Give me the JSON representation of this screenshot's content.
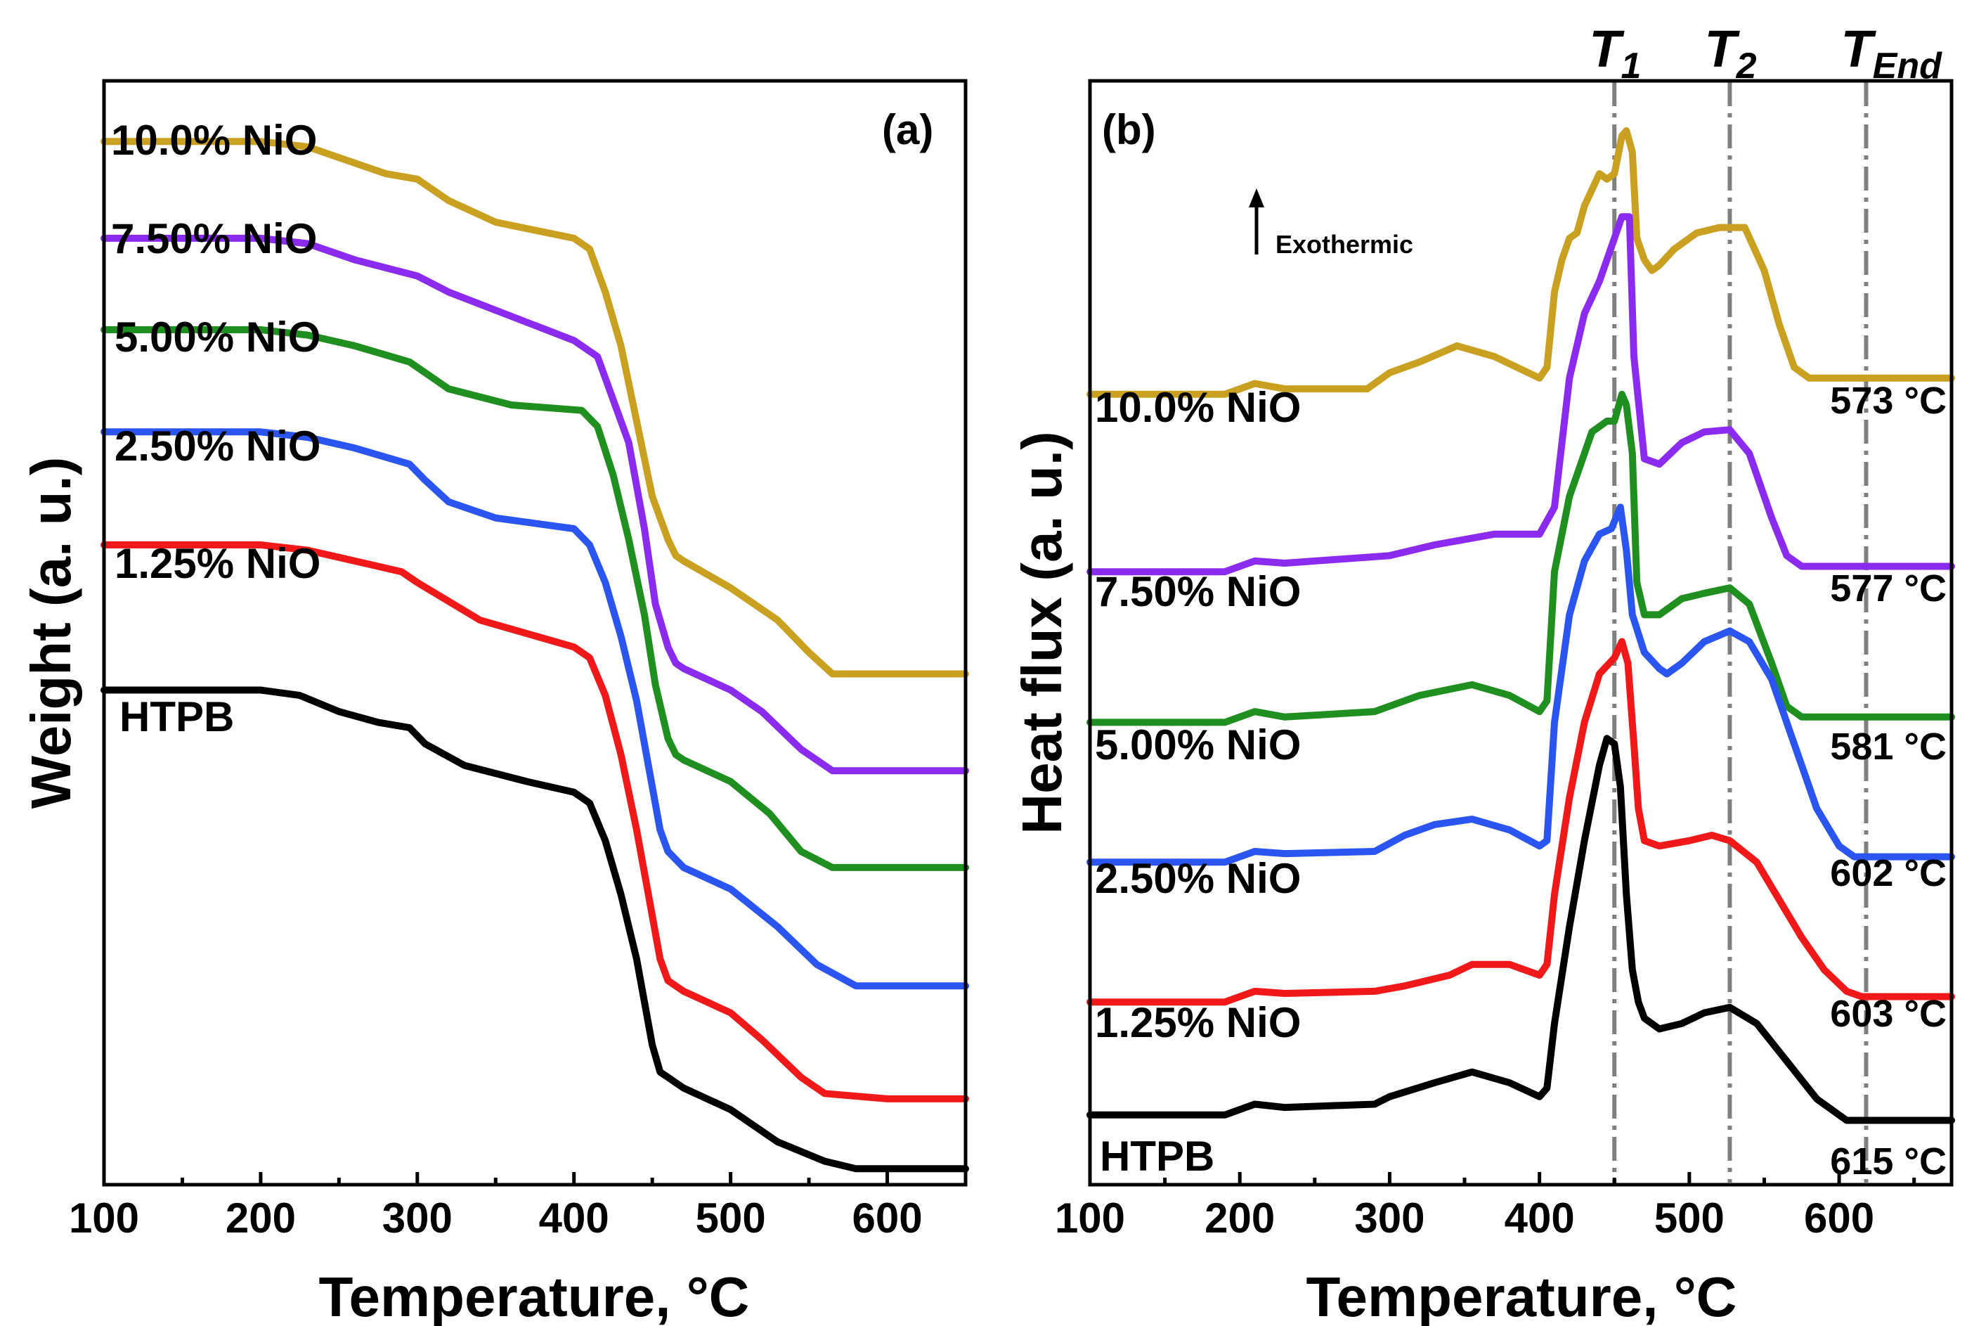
{
  "chart_data": [
    {
      "type": "line",
      "panel": "(a)",
      "xlabel": "Temperature,",
      "xlabel_unit": "°C",
      "ylabel": "Weight (a. u.)",
      "xlim": [
        100,
        650
      ],
      "ylim": [
        0,
        10
      ],
      "xticks": [
        100,
        200,
        300,
        400,
        500,
        600
      ],
      "series": [
        {
          "name": "10.0% NiO",
          "color": "#C9A020",
          "x": [
            100,
            200,
            230,
            250,
            280,
            300,
            320,
            350,
            400,
            410,
            420,
            430,
            440,
            450,
            460,
            465,
            470,
            500,
            530,
            550,
            565,
            600,
            650
          ],
          "y": [
            9.6,
            9.6,
            9.55,
            9.45,
            9.3,
            9.25,
            9.05,
            8.85,
            8.7,
            8.6,
            8.2,
            7.7,
            7.0,
            6.3,
            5.9,
            5.75,
            5.7,
            5.45,
            5.15,
            4.85,
            4.65,
            4.65,
            4.65
          ]
        },
        {
          "name": "7.50% NiO",
          "color": "#8B2BF0",
          "x": [
            100,
            200,
            230,
            260,
            300,
            320,
            400,
            415,
            425,
            435,
            445,
            452,
            460,
            465,
            470,
            500,
            520,
            545,
            565,
            600,
            650
          ],
          "y": [
            8.7,
            8.7,
            8.65,
            8.5,
            8.35,
            8.2,
            7.75,
            7.6,
            7.2,
            6.8,
            6.0,
            5.3,
            4.9,
            4.75,
            4.7,
            4.5,
            4.3,
            3.95,
            3.75,
            3.75,
            3.75
          ]
        },
        {
          "name": "5.00% NiO",
          "color": "#1F8F1F",
          "x": [
            100,
            200,
            230,
            260,
            295,
            320,
            360,
            405,
            415,
            425,
            435,
            445,
            452,
            460,
            465,
            470,
            500,
            525,
            545,
            565,
            600,
            650
          ],
          "y": [
            7.85,
            7.85,
            7.8,
            7.7,
            7.55,
            7.3,
            7.15,
            7.1,
            6.95,
            6.5,
            5.9,
            5.2,
            4.55,
            4.05,
            3.9,
            3.85,
            3.65,
            3.35,
            3.0,
            2.85,
            2.85,
            2.85
          ]
        },
        {
          "name": "2.50% NiO",
          "color": "#2A55F0",
          "x": [
            100,
            200,
            230,
            260,
            295,
            305,
            320,
            350,
            400,
            410,
            420,
            430,
            440,
            450,
            455,
            460,
            470,
            500,
            530,
            555,
            580,
            600,
            650
          ],
          "y": [
            6.9,
            6.9,
            6.85,
            6.75,
            6.6,
            6.45,
            6.25,
            6.1,
            6.0,
            5.85,
            5.5,
            5.0,
            4.4,
            3.6,
            3.2,
            3.0,
            2.85,
            2.65,
            2.3,
            1.95,
            1.75,
            1.75,
            1.75
          ]
        },
        {
          "name": "1.25% NiO",
          "color": "#F01818",
          "x": [
            100,
            200,
            230,
            260,
            290,
            300,
            340,
            400,
            410,
            420,
            430,
            440,
            450,
            455,
            460,
            465,
            470,
            500,
            520,
            545,
            560,
            600,
            650
          ],
          "y": [
            5.85,
            5.85,
            5.8,
            5.7,
            5.6,
            5.5,
            5.15,
            4.9,
            4.8,
            4.45,
            3.9,
            3.2,
            2.4,
            2.0,
            1.8,
            1.75,
            1.7,
            1.5,
            1.25,
            0.9,
            0.75,
            0.7,
            0.7
          ]
        },
        {
          "name": "HTPB",
          "color": "#000000",
          "x": [
            100,
            200,
            225,
            250,
            275,
            295,
            305,
            330,
            370,
            400,
            410,
            420,
            430,
            440,
            450,
            455,
            460,
            465,
            470,
            500,
            530,
            560,
            580,
            600,
            650
          ],
          "y": [
            4.5,
            4.5,
            4.45,
            4.3,
            4.2,
            4.15,
            4.0,
            3.8,
            3.65,
            3.55,
            3.45,
            3.1,
            2.6,
            2.0,
            1.2,
            0.95,
            0.9,
            0.85,
            0.8,
            0.6,
            0.3,
            0.12,
            0.05,
            0.05,
            0.05
          ]
        }
      ]
    },
    {
      "type": "line",
      "panel": "(b)",
      "xlabel": "Temperature,",
      "xlabel_unit": "°C",
      "ylabel": "Heat flux (a. u.)",
      "xlim": [
        100,
        675
      ],
      "ylim": [
        0,
        10
      ],
      "xticks": [
        100,
        200,
        300,
        400,
        500,
        600
      ],
      "annotation": "Exothermic",
      "vlines": [
        {
          "x": 450,
          "label": "T",
          "sub": "1"
        },
        {
          "x": 527,
          "label": "T",
          "sub": "2"
        },
        {
          "x": 618,
          "label": "T",
          "sub": "End"
        }
      ],
      "series": [
        {
          "name": "10.0% NiO",
          "color": "#C9A020",
          "end_temp": "573 °C",
          "x": [
            100,
            190,
            210,
            230,
            285,
            300,
            320,
            345,
            370,
            400,
            405,
            410,
            415,
            420,
            425,
            430,
            440,
            445,
            450,
            455,
            458,
            462,
            465,
            470,
            475,
            480,
            490,
            505,
            520,
            537,
            550,
            560,
            570,
            580,
            600,
            675
          ],
          "y": [
            7.25,
            7.25,
            7.35,
            7.3,
            7.3,
            7.45,
            7.55,
            7.7,
            7.6,
            7.4,
            7.5,
            8.2,
            8.5,
            8.7,
            8.75,
            9.0,
            9.3,
            9.25,
            9.3,
            9.65,
            9.7,
            9.5,
            8.7,
            8.5,
            8.4,
            8.45,
            8.6,
            8.75,
            8.8,
            8.8,
            8.4,
            7.9,
            7.5,
            7.4,
            7.4,
            7.4
          ]
        },
        {
          "name": "7.50% NiO",
          "color": "#8B2BF0",
          "end_temp": "577 °C",
          "x": [
            100,
            190,
            210,
            230,
            300,
            330,
            370,
            400,
            410,
            420,
            430,
            440,
            450,
            455,
            460,
            463,
            470,
            480,
            495,
            510,
            527,
            540,
            555,
            565,
            575,
            590,
            675
          ],
          "y": [
            5.6,
            5.6,
            5.7,
            5.68,
            5.75,
            5.85,
            5.95,
            5.95,
            6.2,
            7.4,
            8.0,
            8.3,
            8.7,
            8.9,
            8.9,
            7.6,
            6.65,
            6.6,
            6.8,
            6.9,
            6.92,
            6.7,
            6.1,
            5.75,
            5.65,
            5.65,
            5.65
          ]
        },
        {
          "name": "5.00% NiO",
          "color": "#1F8F1F",
          "end_temp": "581 °C",
          "x": [
            100,
            190,
            210,
            230,
            290,
            320,
            355,
            380,
            400,
            405,
            410,
            420,
            425,
            435,
            445,
            450,
            455,
            458,
            462,
            465,
            470,
            480,
            495,
            510,
            527,
            540,
            555,
            565,
            575,
            590,
            675
          ],
          "y": [
            4.2,
            4.2,
            4.3,
            4.25,
            4.3,
            4.45,
            4.55,
            4.45,
            4.3,
            4.4,
            5.6,
            6.3,
            6.5,
            6.9,
            7.0,
            7.0,
            7.25,
            7.15,
            6.7,
            5.5,
            5.2,
            5.2,
            5.35,
            5.4,
            5.45,
            5.3,
            4.75,
            4.35,
            4.25,
            4.25,
            4.25
          ]
        },
        {
          "name": "2.50% NiO",
          "color": "#2A55F0",
          "end_temp": "602 °C",
          "x": [
            100,
            190,
            210,
            230,
            290,
            310,
            330,
            355,
            380,
            400,
            405,
            410,
            420,
            430,
            440,
            448,
            454,
            458,
            462,
            470,
            480,
            485,
            495,
            510,
            527,
            540,
            555,
            570,
            585,
            600,
            610,
            675
          ],
          "y": [
            2.9,
            2.9,
            3.0,
            2.98,
            3.0,
            3.15,
            3.25,
            3.3,
            3.2,
            3.05,
            3.1,
            4.2,
            5.2,
            5.7,
            5.95,
            6.0,
            6.2,
            5.8,
            5.2,
            4.85,
            4.7,
            4.65,
            4.75,
            4.95,
            5.05,
            4.95,
            4.6,
            4.0,
            3.4,
            3.05,
            2.95,
            2.95
          ]
        },
        {
          "name": "1.25% NiO",
          "color": "#F01818",
          "end_temp": "603 °C",
          "x": [
            100,
            190,
            210,
            230,
            290,
            310,
            340,
            355,
            380,
            400,
            405,
            410,
            420,
            430,
            440,
            450,
            455,
            459,
            463,
            466,
            470,
            480,
            500,
            515,
            527,
            545,
            560,
            575,
            590,
            605,
            615,
            675
          ],
          "y": [
            1.6,
            1.6,
            1.7,
            1.68,
            1.7,
            1.75,
            1.85,
            1.95,
            1.95,
            1.85,
            1.95,
            2.6,
            3.5,
            4.2,
            4.65,
            4.8,
            4.95,
            4.75,
            4.0,
            3.4,
            3.1,
            3.05,
            3.1,
            3.15,
            3.1,
            2.9,
            2.55,
            2.2,
            1.9,
            1.7,
            1.65,
            1.65
          ]
        },
        {
          "name": "HTPB",
          "color": "#000000",
          "end_temp": "615 °C",
          "x": [
            100,
            190,
            210,
            230,
            290,
            300,
            330,
            355,
            380,
            400,
            405,
            410,
            420,
            430,
            440,
            445,
            450,
            454,
            458,
            462,
            466,
            470,
            480,
            495,
            510,
            527,
            545,
            565,
            585,
            605,
            620,
            675
          ],
          "y": [
            0.55,
            0.55,
            0.65,
            0.62,
            0.65,
            0.72,
            0.85,
            0.95,
            0.85,
            0.72,
            0.8,
            1.4,
            2.3,
            3.1,
            3.8,
            4.05,
            4.0,
            3.6,
            2.6,
            1.9,
            1.6,
            1.45,
            1.35,
            1.4,
            1.5,
            1.55,
            1.4,
            1.05,
            0.7,
            0.5,
            0.5,
            0.5
          ]
        }
      ]
    }
  ],
  "panel_a_labels": [
    "10.0% NiO",
    "7.50% NiO",
    "5.00% NiO",
    "2.50% NiO",
    "1.25% NiO",
    "HTPB"
  ],
  "panel_b_labels": [
    "10.0% NiO",
    "7.50% NiO",
    "5.00% NiO",
    "2.50% NiO",
    "1.25% NiO",
    "HTPB"
  ]
}
